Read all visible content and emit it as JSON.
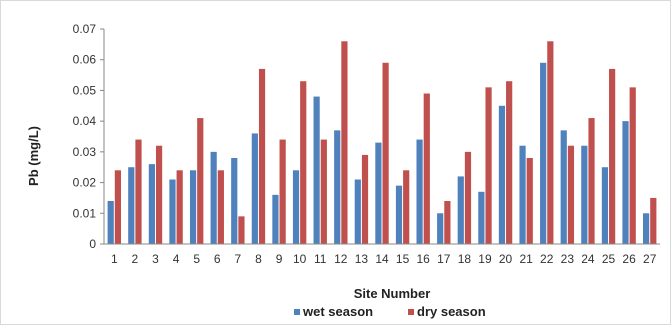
{
  "chart_data": {
    "type": "bar",
    "title": "",
    "xlabel": "Site Number",
    "ylabel": "Pb (mg/L)",
    "ylim": [
      0,
      0.07
    ],
    "yticks": [
      0,
      0.01,
      0.02,
      0.03,
      0.04,
      0.05,
      0.06,
      0.07
    ],
    "ytick_labels": [
      "0",
      "0.01",
      "0.02",
      "0.03",
      "0.04",
      "0.05",
      "0.06",
      "0.07"
    ],
    "grid": false,
    "legend_position": "bottom",
    "categories": [
      "1",
      "2",
      "3",
      "4",
      "5",
      "6",
      "7",
      "8",
      "9",
      "10",
      "11",
      "12",
      "13",
      "14",
      "15",
      "16",
      "17",
      "18",
      "19",
      "20",
      "21",
      "22",
      "23",
      "24",
      "25",
      "26",
      "27"
    ],
    "series": [
      {
        "name": "wet season",
        "color": "#4f81bd",
        "values": [
          0.014,
          0.025,
          0.026,
          0.021,
          0.024,
          0.03,
          0.028,
          0.036,
          0.016,
          0.024,
          0.048,
          0.037,
          0.021,
          0.033,
          0.019,
          0.034,
          0.01,
          0.022,
          0.017,
          0.045,
          0.032,
          0.059,
          0.037,
          0.032,
          0.025,
          0.04,
          0.01
        ]
      },
      {
        "name": "dry season",
        "color": "#c0504d",
        "values": [
          0.024,
          0.034,
          0.032,
          0.024,
          0.041,
          0.024,
          0.009,
          0.057,
          0.034,
          0.053,
          0.034,
          0.066,
          0.029,
          0.059,
          0.024,
          0.049,
          0.014,
          0.03,
          0.051,
          0.053,
          0.028,
          0.066,
          0.032,
          0.041,
          0.057,
          0.051,
          0.015
        ]
      }
    ]
  }
}
